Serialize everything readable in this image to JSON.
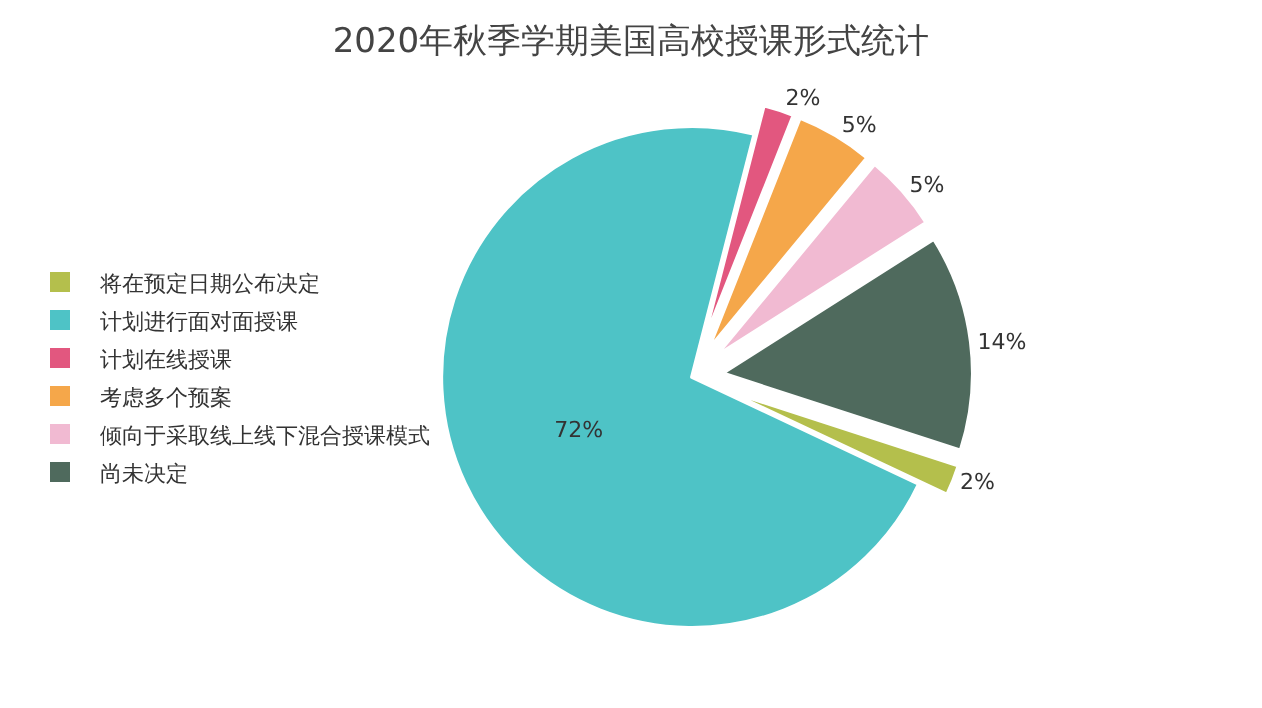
{
  "chart_data": {
    "type": "pie",
    "title": "2020年秋季学期美国高校授课形式统计",
    "categories": [
      "将在预定日期公布决定",
      "计划进行面对面授课",
      "计划在线授课",
      "考虑多个预案",
      "倾向于采取线上线下混合授课模式",
      "尚未决定"
    ],
    "values": [
      2,
      72,
      2,
      5,
      5,
      14
    ],
    "colors": [
      "#b4bf4c",
      "#4ec3c6",
      "#e2577f",
      "#f5a74a",
      "#f1bad2",
      "#4f6a5d"
    ],
    "value_labels": [
      "2%",
      "72%",
      "2%",
      "5%",
      "5%",
      "14%"
    ],
    "legend": "left"
  }
}
